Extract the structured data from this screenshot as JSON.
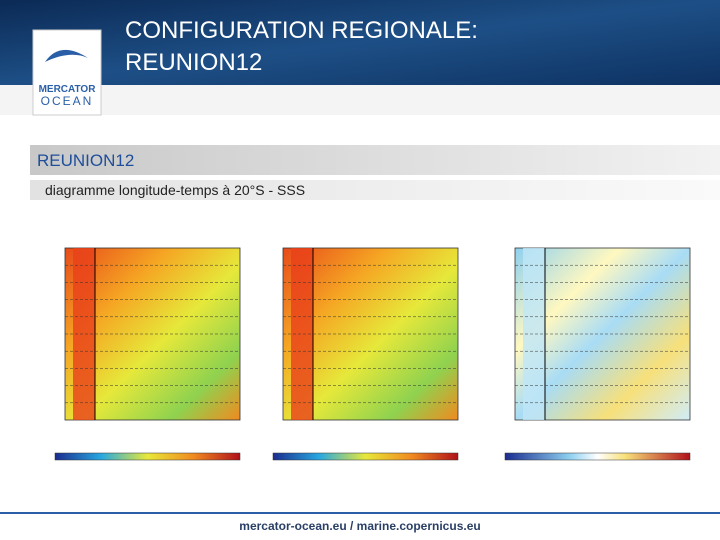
{
  "header": {
    "title_line1": "CONFIGURATION REGIONALE:",
    "title_line2": "REUNION12",
    "logo_line1": "MERCATOR",
    "logo_line2": "OCEAN"
  },
  "section": {
    "heading": "REUNION12",
    "subtitle": "diagramme longitude-temps à 20°S - SSS"
  },
  "footer": {
    "text": "mercator-ocean.eu / marine.copernicus.eu"
  }
}
